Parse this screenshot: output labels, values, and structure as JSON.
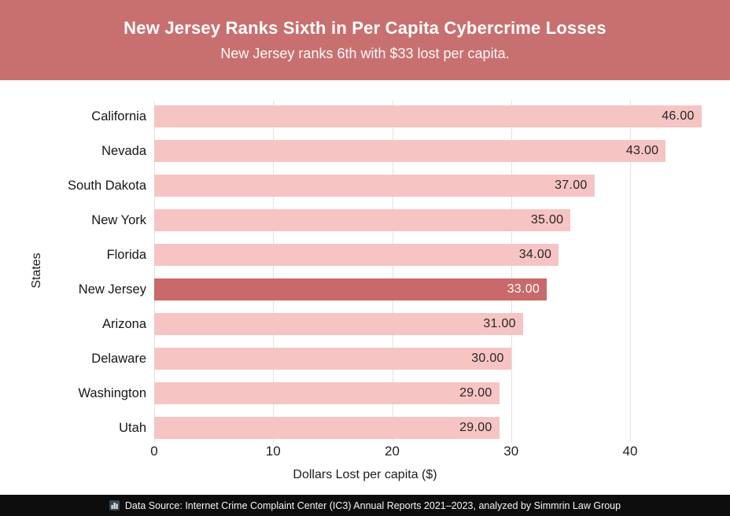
{
  "header": {
    "title": "New Jersey Ranks Sixth in Per Capita Cybercrime Losses",
    "subtitle": "New Jersey ranks 6th with $33 lost per capita.",
    "bg_color": "#C87070"
  },
  "chart_data": {
    "type": "bar",
    "orientation": "horizontal",
    "title": "New Jersey Ranks Sixth in Per Capita Cybercrime Losses",
    "subtitle": "New Jersey ranks 6th with $33 lost per capita.",
    "categories": [
      "California",
      "Nevada",
      "South Dakota",
      "New York",
      "Florida",
      "New Jersey",
      "Arizona",
      "Delaware",
      "Washington",
      "Utah"
    ],
    "values": [
      46,
      43,
      37,
      35,
      34,
      33,
      31,
      30,
      29,
      29
    ],
    "value_labels": [
      "46.00",
      "43.00",
      "37.00",
      "35.00",
      "34.00",
      "33.00",
      "31.00",
      "30.00",
      "29.00",
      "29.00"
    ],
    "highlight_category": "New Jersey",
    "highlight_index": 5,
    "xlabel": "Dollars Lost per capita ($)",
    "ylabel": "States",
    "xticks": [
      0,
      10,
      20,
      30,
      40
    ],
    "xlim": [
      0,
      47
    ],
    "grid": true,
    "legend_position": "none",
    "bar_color": "#F6C4C3",
    "highlight_color": "#C96969",
    "gridline_color": "#e2e2e2"
  },
  "footer": {
    "icon": "bar-chart-icon",
    "text": "Data Source: Internet Crime Complaint Center (IC3) Annual Reports 2021–2023, analyzed by Simmrin Law Group"
  }
}
